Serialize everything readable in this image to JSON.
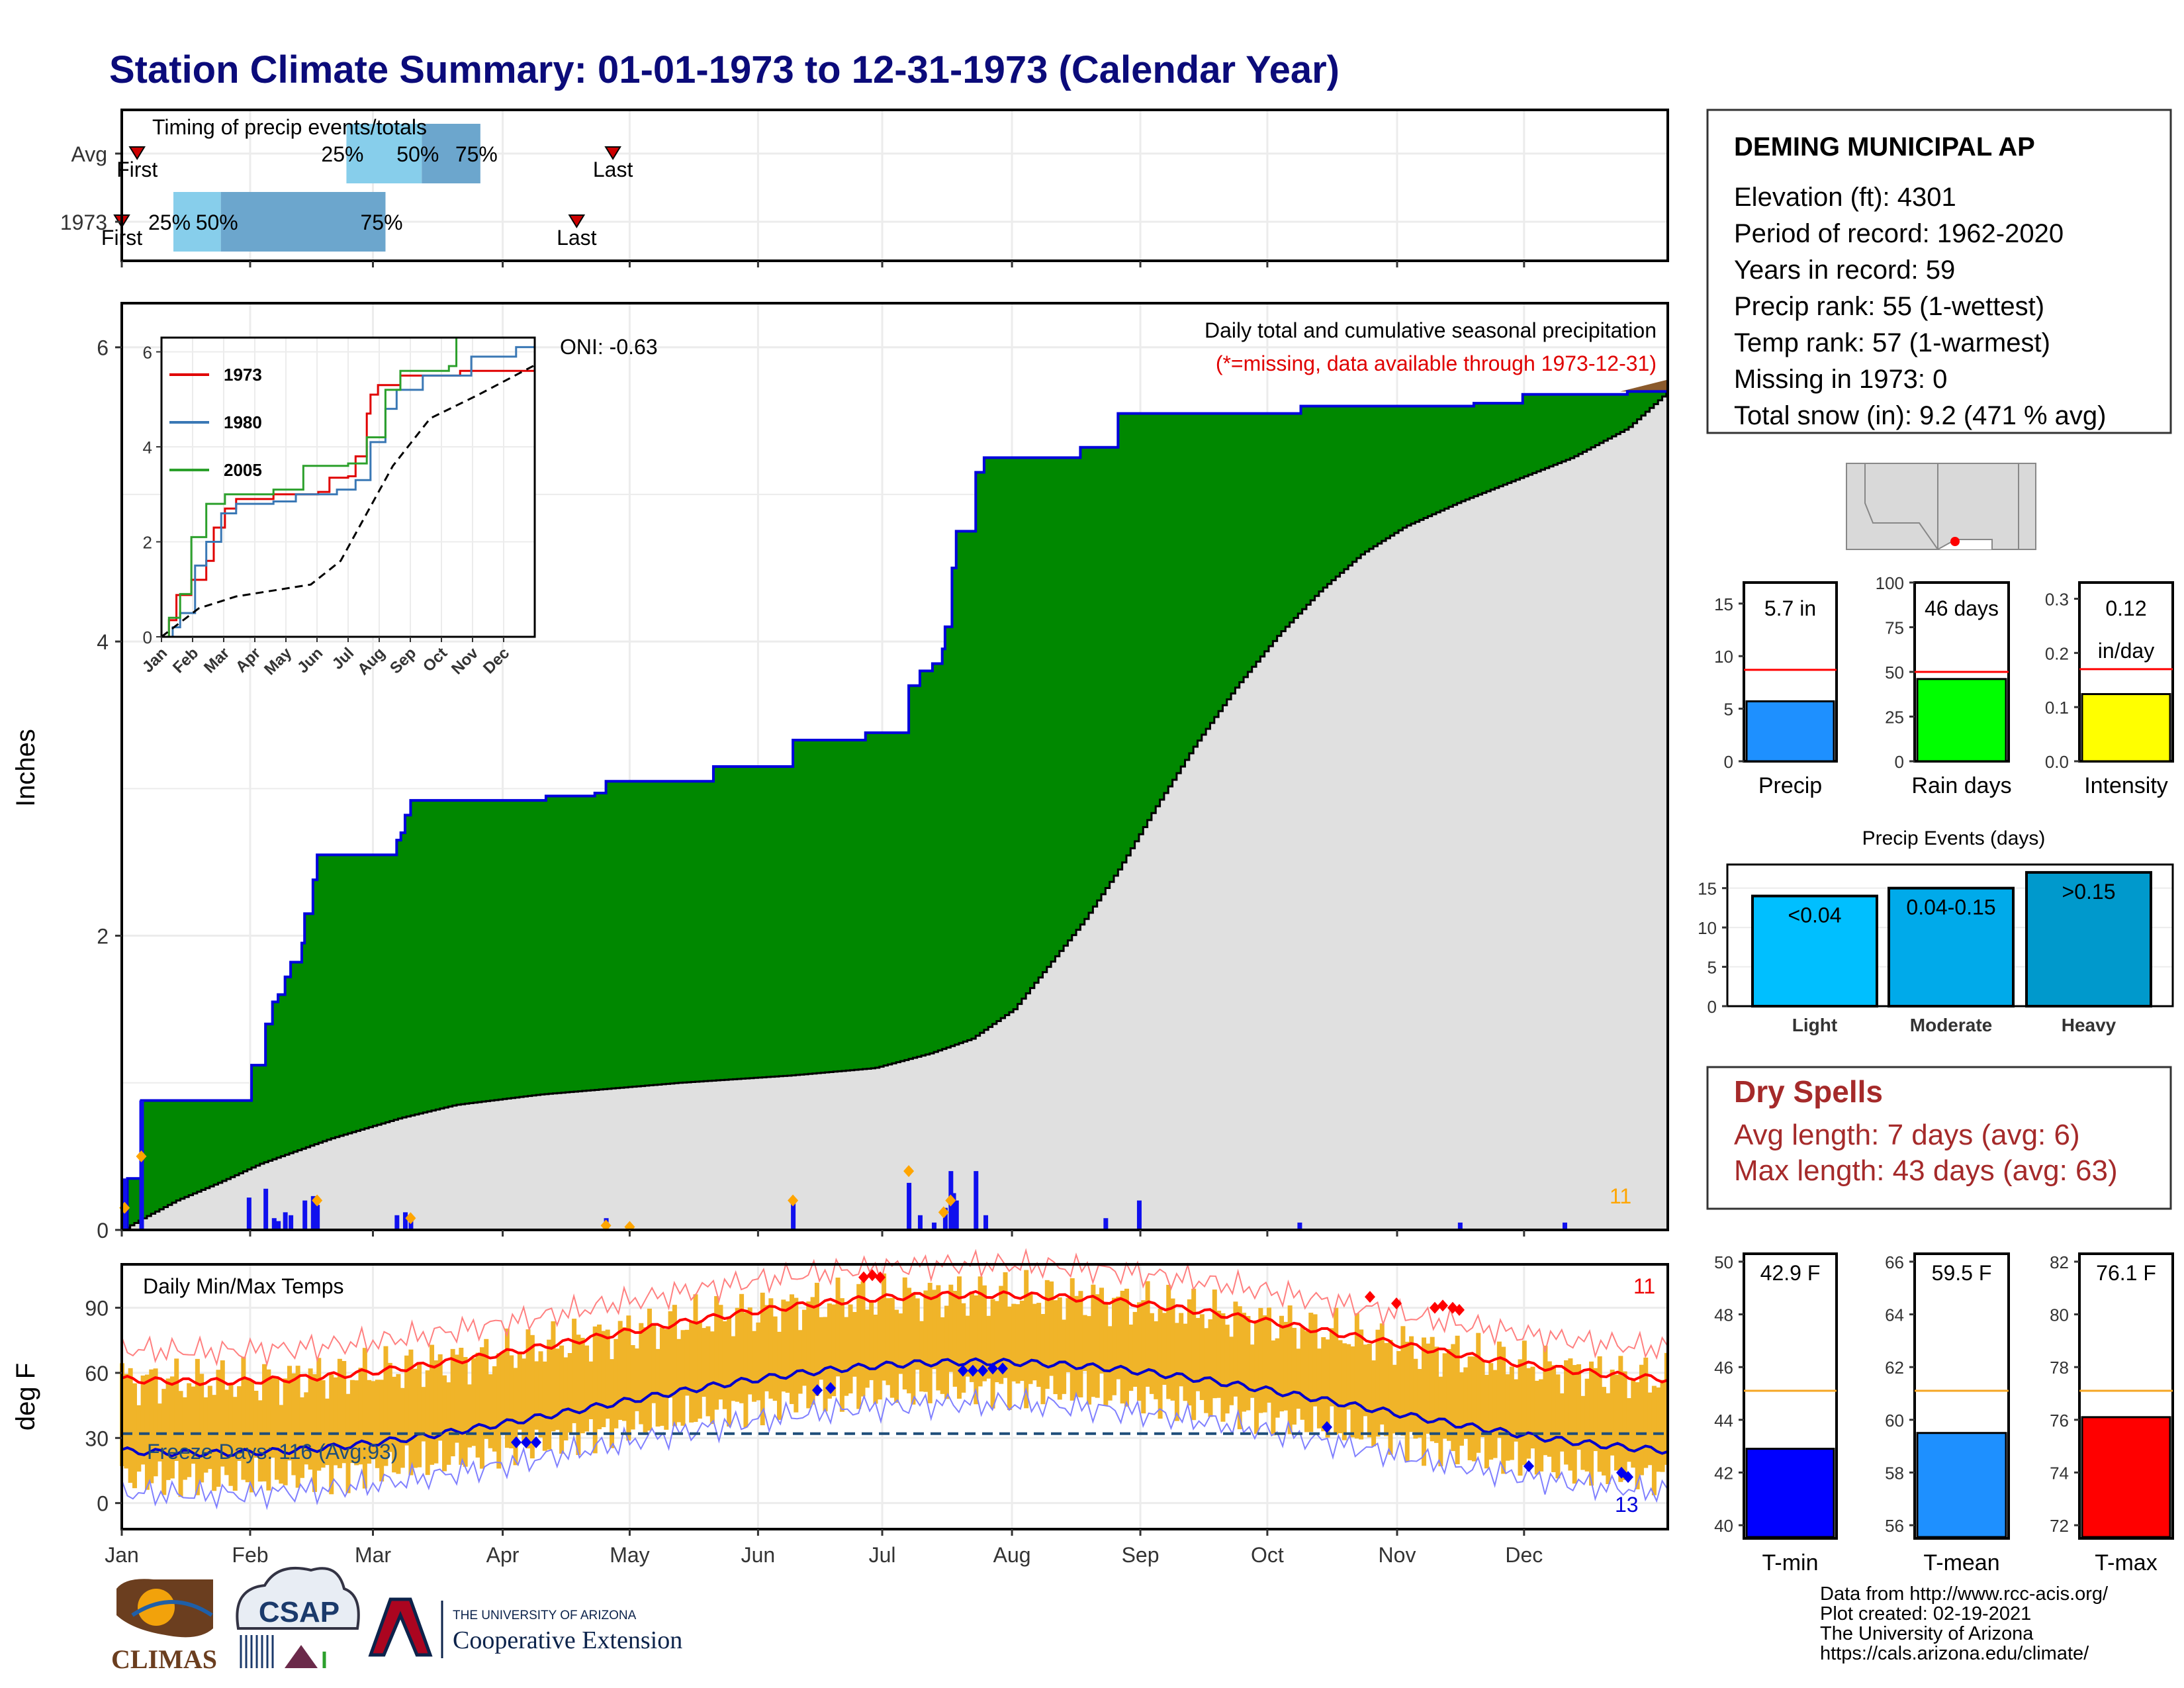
{
  "title": "Station Climate Summary: 01-01-1973 to 12-31-1973 (Calendar Year)",
  "colors": {
    "title": "#0b0b7a",
    "precip_area": "#008800",
    "avg_area": "#e0e0e0",
    "obs_line": "#0000dd",
    "temp_bar": "#f0b429",
    "tmax_line": "#ff0000",
    "tmin_line": "#0000cc",
    "freeze_line": "#1f4e79",
    "q25": "#87ceeb",
    "q50": "#6ca6cd",
    "precip_bar": "#1e90ff",
    "raindays_bar": "#00ff00",
    "intensity_bar": "#ffff00",
    "light_bar": "#00bfff",
    "moderate_bar": "#00afea",
    "heavy_bar": "#009fd0",
    "dry": "#a52a2a",
    "avg_marker": "#ff0000",
    "tmean_bar": "#1e90ff",
    "tavg_line": "#f5a623"
  },
  "months": [
    "Jan",
    "Feb",
    "Mar",
    "Apr",
    "May",
    "Jun",
    "Jul",
    "Aug",
    "Sep",
    "Oct",
    "Nov",
    "Dec"
  ],
  "timing_panel": {
    "title": "Timing of precip events/totals",
    "rows": [
      {
        "label": "Avg",
        "first": "First",
        "last": "Last",
        "first_day": 12,
        "last_day": 353,
        "q25_day": 162,
        "q50_day": 216,
        "q75_day": 258
      },
      {
        "label": "1973",
        "first": "First",
        "last": "Last",
        "first_day": 1,
        "last_day": 327,
        "q25_day": 38,
        "q50_day": 72,
        "q75_day": 190
      }
    ],
    "pct_labels": [
      "25%",
      "50%",
      "75%"
    ]
  },
  "precip_panel": {
    "ylabel": "Inches",
    "yticks": [
      "0",
      "2",
      "4",
      "6"
    ],
    "ylim": [
      0,
      6.3
    ],
    "caption": "Daily total and cumulative seasonal precipitation",
    "missing_note": "(*=missing, data available through 1973-12-31)",
    "oni": "ONI: -0.63",
    "count_label": "11",
    "cumulative_1973": [
      [
        1,
        0
      ],
      [
        5,
        0.35
      ],
      [
        14,
        0.35
      ],
      [
        15,
        0.88
      ],
      [
        92,
        0.88
      ],
      [
        94,
        1.12
      ],
      [
        100,
        1.12
      ],
      [
        104,
        1.4
      ],
      [
        109,
        1.55
      ],
      [
        113,
        1.6
      ],
      [
        118,
        1.72
      ],
      [
        122,
        1.82
      ],
      [
        130,
        1.95
      ],
      [
        132,
        2.15
      ],
      [
        138,
        2.38
      ],
      [
        141,
        2.55
      ],
      [
        195,
        2.55
      ],
      [
        198,
        2.65
      ],
      [
        201,
        2.7
      ],
      [
        204,
        2.82
      ],
      [
        208,
        2.92
      ],
      [
        290,
        2.92
      ],
      [
        305,
        2.95
      ],
      [
        340,
        2.97
      ],
      [
        348,
        3.05
      ],
      [
        420,
        3.05
      ],
      [
        425,
        3.15
      ],
      [
        480,
        3.15
      ],
      [
        482,
        3.33
      ],
      [
        532,
        3.33
      ],
      [
        534,
        3.38
      ],
      [
        563,
        3.38
      ],
      [
        565,
        3.7
      ],
      [
        573,
        3.8
      ],
      [
        582,
        3.85
      ],
      [
        589,
        3.95
      ],
      [
        591,
        4.1
      ],
      [
        596,
        4.5
      ],
      [
        599,
        4.75
      ],
      [
        610,
        4.75
      ],
      [
        613,
        5.15
      ],
      [
        619,
        5.25
      ],
      [
        685,
        5.25
      ],
      [
        688,
        5.32
      ],
      [
        709,
        5.32
      ],
      [
        715,
        5.55
      ],
      [
        843,
        5.55
      ],
      [
        846,
        5.6
      ],
      [
        940,
        5.6
      ],
      [
        970,
        5.62
      ],
      [
        1005,
        5.68
      ],
      [
        1080,
        5.7
      ],
      [
        1109,
        5.7
      ]
    ],
    "avg_cumulative": [
      [
        1,
        0
      ],
      [
        20,
        0.1
      ],
      [
        40,
        0.2
      ],
      [
        70,
        0.32
      ],
      [
        100,
        0.45
      ],
      [
        150,
        0.62
      ],
      [
        200,
        0.76
      ],
      [
        240,
        0.85
      ],
      [
        300,
        0.92
      ],
      [
        400,
        1.0
      ],
      [
        480,
        1.05
      ],
      [
        540,
        1.1
      ],
      [
        580,
        1.2
      ],
      [
        610,
        1.3
      ],
      [
        640,
        1.5
      ],
      [
        665,
        1.8
      ],
      [
        690,
        2.1
      ],
      [
        715,
        2.45
      ],
      [
        740,
        2.85
      ],
      [
        770,
        3.3
      ],
      [
        800,
        3.7
      ],
      [
        830,
        4.05
      ],
      [
        860,
        4.35
      ],
      [
        890,
        4.6
      ],
      [
        920,
        4.78
      ],
      [
        960,
        4.95
      ],
      [
        1000,
        5.1
      ],
      [
        1040,
        5.25
      ],
      [
        1080,
        5.45
      ],
      [
        1109,
        5.7
      ]
    ],
    "daily_bars": [
      [
        3,
        0.35
      ],
      [
        15,
        0.88
      ],
      [
        92,
        0.22
      ],
      [
        104,
        0.28
      ],
      [
        110,
        0.08
      ],
      [
        113,
        0.06
      ],
      [
        118,
        0.12
      ],
      [
        122,
        0.1
      ],
      [
        132,
        0.2
      ],
      [
        138,
        0.23
      ],
      [
        141,
        0.17
      ],
      [
        198,
        0.1
      ],
      [
        204,
        0.12
      ],
      [
        208,
        0.1
      ],
      [
        348,
        0.08
      ],
      [
        482,
        0.18
      ],
      [
        565,
        0.32
      ],
      [
        573,
        0.1
      ],
      [
        583,
        0.05
      ],
      [
        591,
        0.15
      ],
      [
        595,
        0.4
      ],
      [
        597,
        0.25
      ],
      [
        599,
        0.2
      ],
      [
        613,
        0.4
      ],
      [
        620,
        0.1
      ],
      [
        706,
        0.08
      ],
      [
        730,
        0.2
      ],
      [
        845,
        0.05
      ],
      [
        960,
        0.05
      ],
      [
        1035,
        0.05
      ]
    ]
  },
  "inset": {
    "yticks": [
      "0",
      "2",
      "4",
      "6"
    ],
    "xticks": [
      "Jan",
      "Feb",
      "Mar",
      "Apr",
      "May",
      "Jun",
      "Jul",
      "Aug",
      "Sep",
      "Oct",
      "Nov",
      "Dec"
    ],
    "series": [
      {
        "name": "1973",
        "color": "#e00000"
      },
      {
        "name": "1980",
        "color": "#3a78b5"
      },
      {
        "name": "2005",
        "color": "#2ca02c"
      }
    ]
  },
  "temp_panel": {
    "ylabel": "deg F",
    "title": "Daily Min/Max Temps",
    "yticks": [
      "0",
      "30",
      "60",
      "90"
    ],
    "ylim": [
      -12,
      110
    ],
    "freeze_label": "Freeze Days: 116 (Avg:93)",
    "count_top": "11",
    "count_bottom": "13",
    "freeze_temp": 32
  },
  "station": {
    "name": "DEMING MUNICIPAL AP",
    "lines": [
      "Elevation (ft): 4301",
      "Period of record: 1962-2020",
      "Years in record: 59",
      "Precip rank: 55 (1-wettest)",
      "Temp rank: 57 (1-warmest)",
      "Missing in 1973: 0",
      "Total snow (in): 9.2 (471 % avg)"
    ]
  },
  "mini_bars": [
    {
      "label": "Precip",
      "value_text": "5.7 in",
      "value": 5.7,
      "avg": 8.7,
      "ymax": 17,
      "ticks": [
        "0",
        "5",
        "10",
        "15"
      ],
      "tickvals": [
        0,
        5,
        10,
        15
      ],
      "color": "#1e90ff"
    },
    {
      "label": "Rain days",
      "value_text": "46 days",
      "value": 46,
      "avg": 50,
      "ymax": 100,
      "ticks": [
        "0",
        "25",
        "50",
        "75",
        "100"
      ],
      "tickvals": [
        0,
        25,
        50,
        75,
        100
      ],
      "color": "#00ff00"
    },
    {
      "label": "Intensity",
      "value_text": "0.12",
      "value_text2": "in/day",
      "value": 0.124,
      "avg": 0.17,
      "ymax": 0.33,
      "ticks": [
        "0.0",
        "0.1",
        "0.2",
        "0.3"
      ],
      "tickvals": [
        0,
        0.1,
        0.2,
        0.3
      ],
      "color": "#ffff00"
    }
  ],
  "events": {
    "title": "Precip Events (days)",
    "yticks": [
      "0",
      "5",
      "10",
      "15"
    ],
    "bars": [
      {
        "label": "Light",
        "range": "<0.04",
        "value": 14,
        "color": "#00bfff"
      },
      {
        "label": "Moderate",
        "range": "0.04-0.15",
        "value": 15,
        "color": "#00aaea"
      },
      {
        "label": "Heavy",
        "range": ">0.15",
        "value": 17,
        "color": "#0099cc"
      }
    ]
  },
  "dry_spells": {
    "title": "Dry Spells",
    "avg_length": "Avg length: 7 days (avg: 6)",
    "max_length": "Max length: 43 days (avg: 63)"
  },
  "temp_bars": [
    {
      "label": "T-min",
      "value_text": "42.9 F",
      "value": 42.9,
      "avg": 45.1,
      "ymin": 39.5,
      "ymax": 50.3,
      "ticks": [
        "40",
        "42",
        "44",
        "46",
        "48",
        "50"
      ],
      "tickvals": [
        40,
        42,
        44,
        46,
        48,
        50
      ],
      "color": "#0000ff"
    },
    {
      "label": "T-mean",
      "value_text": "59.5 F",
      "value": 59.5,
      "avg": 61.1,
      "ymin": 55.5,
      "ymax": 66.3,
      "ticks": [
        "56",
        "58",
        "60",
        "62",
        "64",
        "66"
      ],
      "tickvals": [
        56,
        58,
        60,
        62,
        64,
        66
      ],
      "color": "#1e90ff"
    },
    {
      "label": "T-max",
      "value_text": "76.1 F",
      "value": 76.1,
      "avg": 77.1,
      "ymin": 71.5,
      "ymax": 82.3,
      "ticks": [
        "72",
        "74",
        "76",
        "78",
        "80",
        "82"
      ],
      "tickvals": [
        72,
        74,
        76,
        78,
        80,
        82
      ],
      "color": "#ff0000"
    }
  ],
  "credits": [
    "Data from http://www.rcc-acis.org/",
    "Plot created: 02-19-2021",
    "The University of Arizona",
    "https://cals.arizona.edu/climate/"
  ],
  "logos": {
    "climas": "CLIMAS",
    "csap": "CSAP",
    "ua_line1": "THE UNIVERSITY OF ARIZONA",
    "ua_line2": "Cooperative Extension"
  }
}
